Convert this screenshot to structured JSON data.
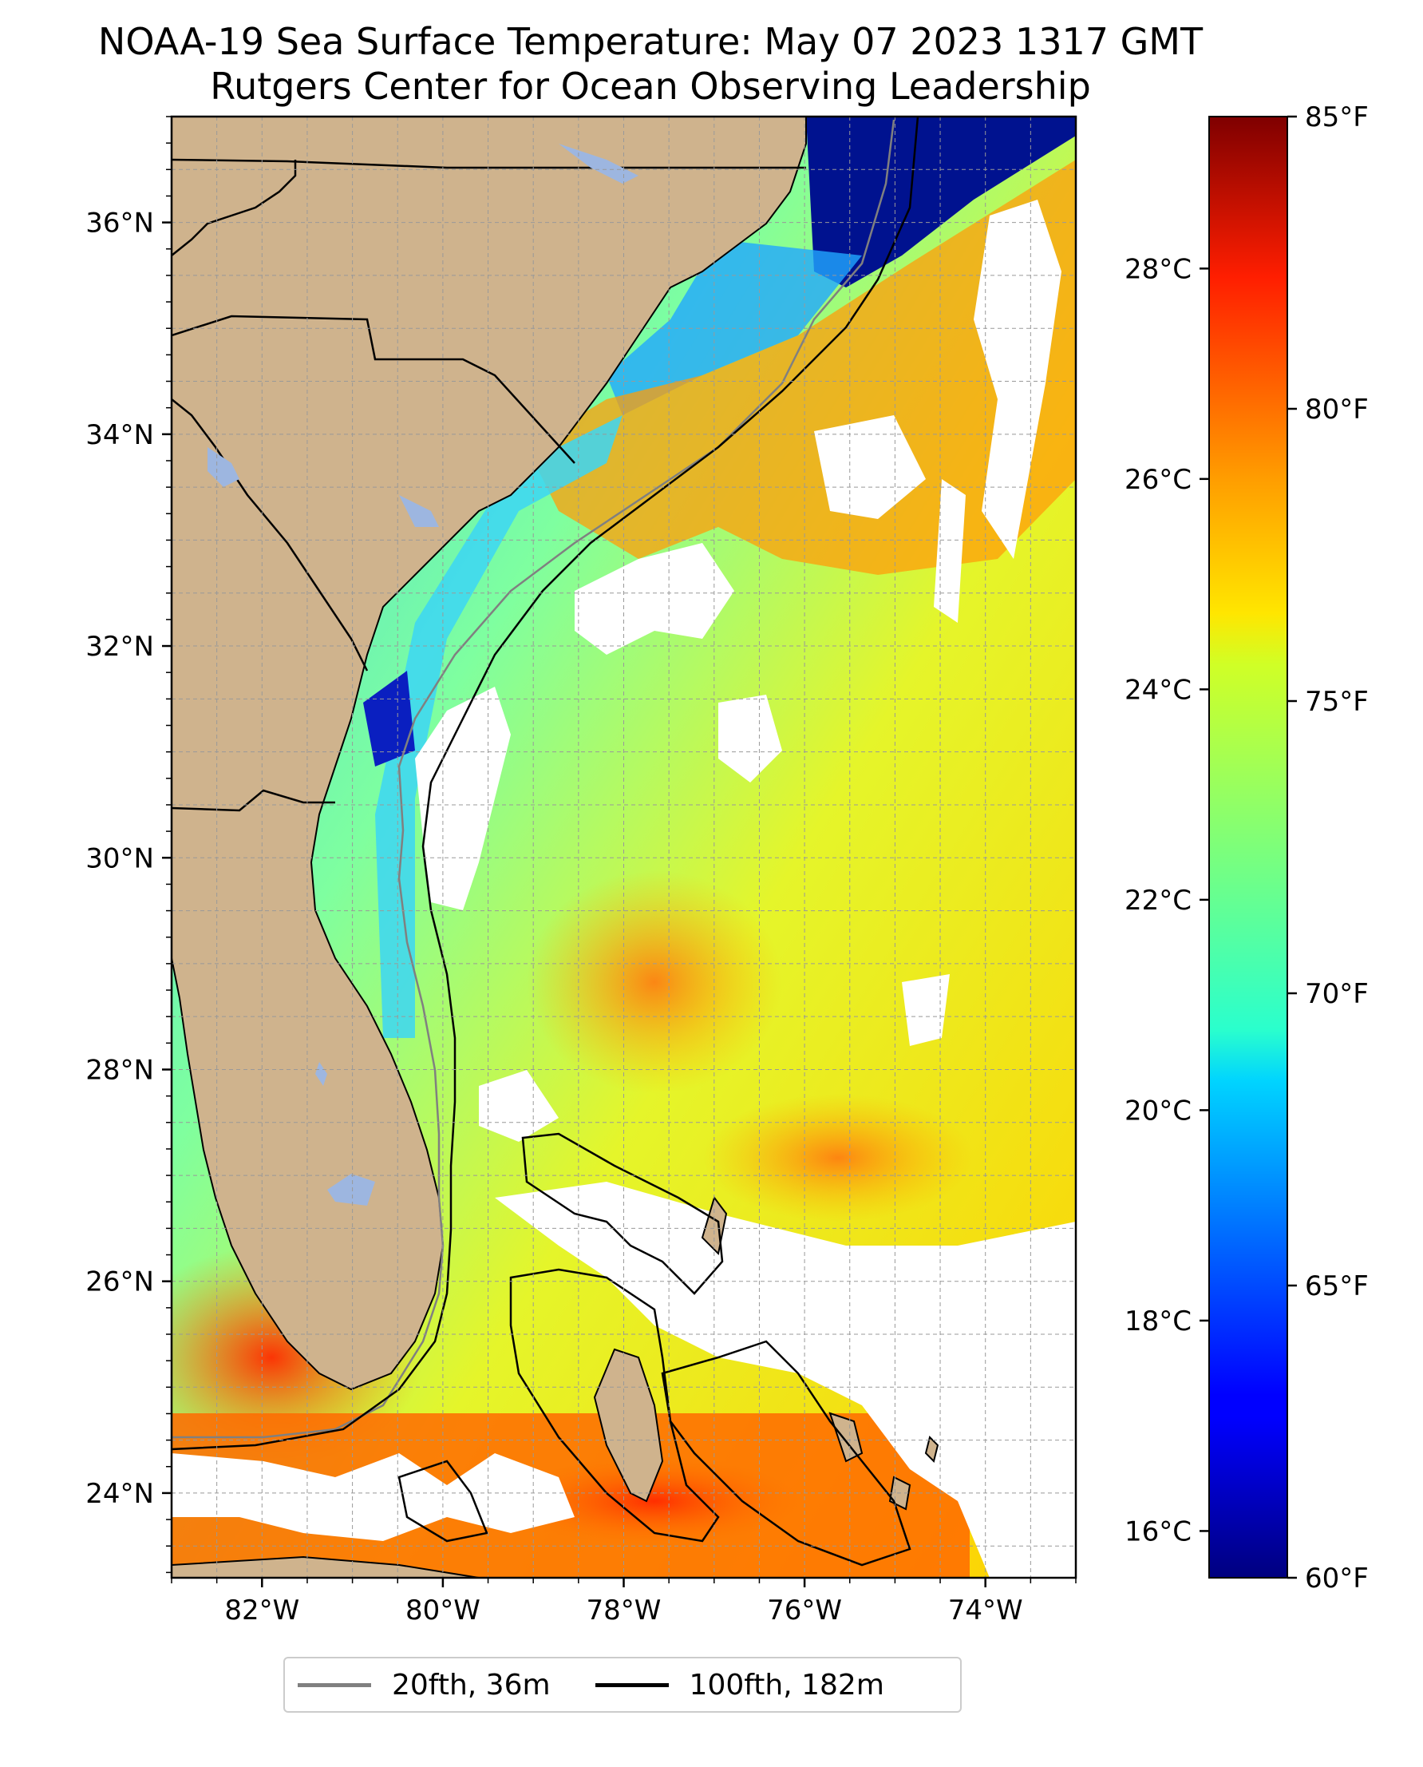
{
  "title": {
    "line1": "NOAA-19 Sea Surface Temperature: May 07 2023 1317 GMT",
    "line2": "Rutgers Center for Ocean Observing Leadership"
  },
  "map": {
    "lon_range": [
      -83,
      -73
    ],
    "lat_range": [
      23.2,
      37.0
    ],
    "lat_ticks": [
      {
        "value": 36,
        "label": "36°N"
      },
      {
        "value": 34,
        "label": "34°N"
      },
      {
        "value": 32,
        "label": "32°N"
      },
      {
        "value": 30,
        "label": "30°N"
      },
      {
        "value": 28,
        "label": "28°N"
      },
      {
        "value": 26,
        "label": "26°N"
      },
      {
        "value": 24,
        "label": "24°N"
      }
    ],
    "lon_ticks": [
      {
        "value": -82,
        "label": "82°W"
      },
      {
        "value": -80,
        "label": "80°W"
      },
      {
        "value": -78,
        "label": "78°W"
      },
      {
        "value": -76,
        "label": "76°W"
      },
      {
        "value": -74,
        "label": "74°W"
      }
    ],
    "gridlines": true,
    "colors": {
      "land": "#cfb38d",
      "cloud": "#ffffff",
      "lakes": "#9db6e0",
      "isobath_20fth": "#808080",
      "isobath_100fth": "#000000"
    }
  },
  "colorbar": {
    "colormap": "jet",
    "range_f": [
      60,
      85
    ],
    "fahrenheit_ticks": [
      {
        "value": 85,
        "label": "85°F"
      },
      {
        "value": 80,
        "label": "80°F"
      },
      {
        "value": 75,
        "label": "75°F"
      },
      {
        "value": 70,
        "label": "70°F"
      },
      {
        "value": 65,
        "label": "65°F"
      },
      {
        "value": 60,
        "label": "60°F"
      }
    ],
    "celsius_ticks": [
      {
        "value": 28,
        "label": "28°C"
      },
      {
        "value": 26,
        "label": "26°C"
      },
      {
        "value": 24,
        "label": "24°C"
      },
      {
        "value": 22,
        "label": "22°C"
      },
      {
        "value": 20,
        "label": "20°C"
      },
      {
        "value": 18,
        "label": "18°C"
      },
      {
        "value": 16,
        "label": "16°C"
      }
    ]
  },
  "legend": {
    "items": [
      {
        "label": "20fth, 36m",
        "color": "#808080"
      },
      {
        "label": "100fth, 182m",
        "color": "#000000"
      }
    ]
  }
}
